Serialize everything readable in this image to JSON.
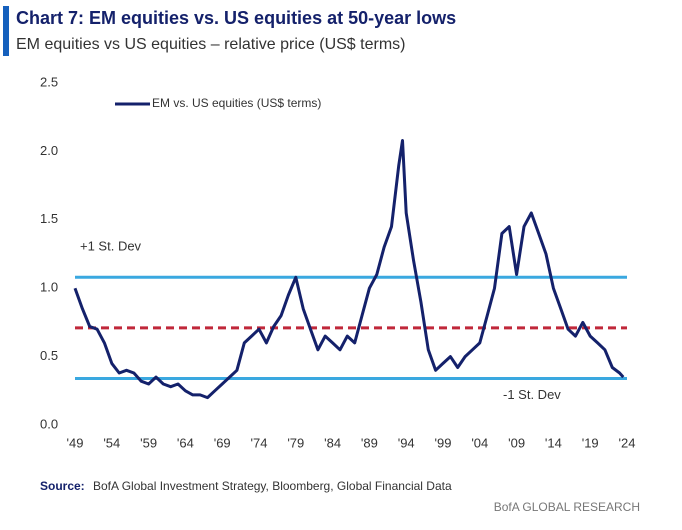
{
  "chart_data": {
    "type": "line",
    "title": "Chart 7: EM equities vs. US equities at 50-year lows",
    "subtitle": "EM equities vs US equities – relative price (US$ terms)",
    "x": [
      1949,
      1950,
      1951,
      1952,
      1953,
      1954,
      1955,
      1956,
      1957,
      1958,
      1959,
      1960,
      1961,
      1962,
      1963,
      1964,
      1965,
      1966,
      1967,
      1968,
      1969,
      1970,
      1971,
      1972,
      1973,
      1974,
      1975,
      1976,
      1977,
      1978,
      1979,
      1980,
      1981,
      1982,
      1983,
      1984,
      1985,
      1986,
      1987,
      1988,
      1989,
      1990,
      1991,
      1992,
      1993,
      1993.5,
      1994,
      1995,
      1996,
      1997,
      1998,
      1999,
      2000,
      2001,
      2002,
      2003,
      2004,
      2005,
      2006,
      2007,
      2008,
      2009,
      2010,
      2011,
      2012,
      2013,
      2014,
      2015,
      2016,
      2017,
      2018,
      2019,
      2020,
      2021,
      2022,
      2023,
      2023.5
    ],
    "series": [
      {
        "name": "EM vs. US equities (US$ terms)",
        "color": "#14216b",
        "values": [
          1.0,
          0.85,
          0.72,
          0.7,
          0.6,
          0.45,
          0.38,
          0.4,
          0.38,
          0.32,
          0.3,
          0.35,
          0.3,
          0.28,
          0.3,
          0.25,
          0.22,
          0.22,
          0.2,
          0.25,
          0.3,
          0.35,
          0.4,
          0.6,
          0.65,
          0.7,
          0.6,
          0.72,
          0.8,
          0.95,
          1.08,
          0.85,
          0.7,
          0.55,
          0.65,
          0.6,
          0.55,
          0.65,
          0.6,
          0.8,
          1.0,
          1.1,
          1.3,
          1.45,
          1.9,
          2.08,
          1.55,
          1.2,
          0.9,
          0.55,
          0.4,
          0.45,
          0.5,
          0.42,
          0.5,
          0.55,
          0.6,
          0.8,
          1.0,
          1.4,
          1.45,
          1.1,
          1.45,
          1.55,
          1.4,
          1.25,
          1.0,
          0.85,
          0.7,
          0.65,
          0.75,
          0.65,
          0.6,
          0.55,
          0.42,
          0.38,
          0.35
        ]
      }
    ],
    "reference_lines": [
      {
        "value": 1.08,
        "label": "+1 St. Dev",
        "color": "#3aa8e0",
        "dashed": false
      },
      {
        "value": 0.71,
        "color": "#c0283a",
        "dashed": true
      },
      {
        "value": 0.34,
        "label": "-1 St. Dev",
        "color": "#3aa8e0",
        "dashed": false
      }
    ],
    "xlim": [
      1949,
      2024
    ],
    "xticks": [
      {
        "value": 1949,
        "label": "'49"
      },
      {
        "value": 1954,
        "label": "'54"
      },
      {
        "value": 1959,
        "label": "'59"
      },
      {
        "value": 1964,
        "label": "'64"
      },
      {
        "value": 1969,
        "label": "'69"
      },
      {
        "value": 1974,
        "label": "'74"
      },
      {
        "value": 1979,
        "label": "'79"
      },
      {
        "value": 1984,
        "label": "'84"
      },
      {
        "value": 1989,
        "label": "'89"
      },
      {
        "value": 1994,
        "label": "'94"
      },
      {
        "value": 1999,
        "label": "'99"
      },
      {
        "value": 2004,
        "label": "'04"
      },
      {
        "value": 2009,
        "label": "'09"
      },
      {
        "value": 2014,
        "label": "'14"
      },
      {
        "value": 2019,
        "label": "'19"
      },
      {
        "value": 2024,
        "label": "'24"
      }
    ],
    "ylim": [
      0,
      2.5
    ],
    "yticks": [
      {
        "value": 0,
        "label": "0.0"
      },
      0.5,
      {
        "value": 1,
        "label": "1.0"
      },
      1.5,
      {
        "value": 2,
        "label": "2.0"
      },
      2.5
    ],
    "grid": false,
    "source_label": "Source:",
    "source": "BofA Global Investment Strategy, Bloomberg, Global Financial Data",
    "footer": "BofA GLOBAL RESEARCH"
  }
}
